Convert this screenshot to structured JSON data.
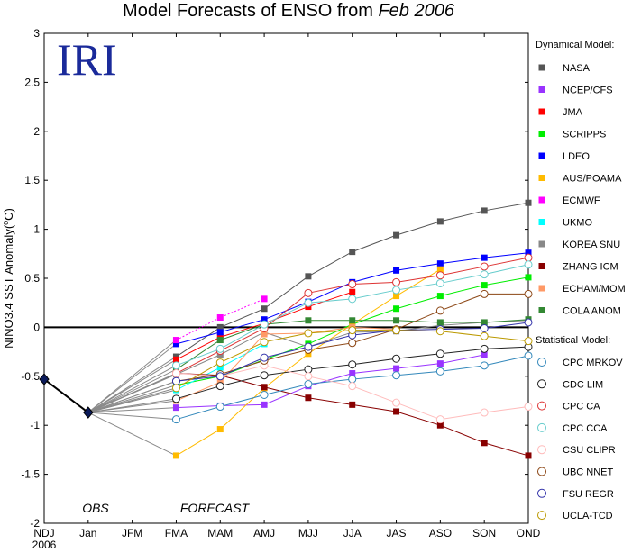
{
  "chart_data": {
    "type": "line",
    "title_prefix": "Model Forecasts of ENSO from ",
    "title_date": "Feb 2006",
    "logo_text": "IRI",
    "ylabel_main": "NINO3.4 SST Anomaly(",
    "ylabel_super": "o",
    "ylabel_unit": "C)",
    "ylim": [
      -2,
      3
    ],
    "y_ticks": [
      -2,
      -1.5,
      -1,
      -0.5,
      0,
      0.5,
      1,
      1.5,
      2,
      2.5,
      3
    ],
    "x_ticks": [
      "NDJ",
      "Jan",
      "JFM",
      "FMA",
      "MAM",
      "AMJ",
      "MJJ",
      "JJA",
      "JAS",
      "ASO",
      "SON",
      "OND"
    ],
    "x_sub_label": "2006",
    "obs_label": "OBS",
    "forecast_label": "FORECAST",
    "dynamical_heading": "Dynamical Model:",
    "statistical_heading": "Statistical Model:",
    "observed": [
      -0.53,
      -0.87
    ],
    "series": [
      {
        "name": "NASA",
        "group": "dynamical",
        "color": "#555555",
        "marker": "square",
        "values": [
          -0.3,
          0.0,
          0.19,
          0.52,
          0.77,
          0.94,
          1.08,
          1.19,
          1.27
        ]
      },
      {
        "name": "NCEP/CFS",
        "group": "dynamical",
        "color": "#9933ff",
        "marker": "square",
        "values": [
          -0.82,
          -0.8,
          -0.79,
          -0.6,
          -0.47,
          -0.42,
          -0.37,
          -0.28
        ]
      },
      {
        "name": "JMA",
        "group": "dynamical",
        "color": "#ff0000",
        "marker": "square",
        "values": [
          -0.33,
          -0.1,
          0.04,
          0.21,
          0.36
        ]
      },
      {
        "name": "SCRIPPS",
        "group": "dynamical",
        "color": "#00ee00",
        "marker": "square",
        "values": [
          -0.59,
          -0.5,
          -0.33,
          -0.17,
          0.03,
          0.19,
          0.32,
          0.43,
          0.51
        ]
      },
      {
        "name": "LDEO",
        "group": "dynamical",
        "color": "#0000ff",
        "marker": "square",
        "values": [
          -0.17,
          -0.05,
          0.08,
          0.26,
          0.46,
          0.58,
          0.65,
          0.71,
          0.76
        ]
      },
      {
        "name": "AUS/POAMA",
        "group": "dynamical",
        "color": "#ffbb00",
        "marker": "square",
        "values": [
          -1.31,
          -1.04,
          -0.62,
          -0.27,
          0.03,
          0.32,
          0.59
        ]
      },
      {
        "name": "ECMWF",
        "group": "dynamical",
        "color": "#ff00ff",
        "marker": "square",
        "values": [
          -0.13,
          0.1,
          0.29
        ]
      },
      {
        "name": "UKMO",
        "group": "dynamical",
        "color": "#00ffff",
        "marker": "square",
        "values": [
          -0.64,
          -0.41,
          -0.17
        ]
      },
      {
        "name": "KOREA SNU",
        "group": "dynamical",
        "color": "#888888",
        "marker": "square",
        "values": [
          -0.48,
          -0.28,
          -0.05,
          -0.2,
          -0.05,
          -0.04,
          0.02,
          0.05,
          0.07
        ]
      },
      {
        "name": "ZHANG ICM",
        "group": "dynamical",
        "color": "#880000",
        "marker": "square",
        "values": [
          -0.47,
          -0.49,
          -0.61,
          -0.72,
          -0.79,
          -0.86,
          -1.0,
          -1.18,
          -1.31
        ]
      },
      {
        "name": "ECHAM/MOM",
        "group": "dynamical",
        "color": "#ff9966",
        "marker": "square",
        "values": [
          -0.75,
          -0.56,
          -0.07,
          -0.06,
          0.0,
          -0.02
        ]
      },
      {
        "name": "COLA ANOM",
        "group": "dynamical",
        "color": "#338833",
        "marker": "square",
        "values": [
          -0.43,
          -0.13,
          0.03,
          0.07,
          0.07,
          0.07,
          0.05,
          0.05,
          0.08
        ]
      },
      {
        "name": "CPC MRKOV",
        "group": "statistical",
        "color": "#3388bb",
        "marker": "circle",
        "values": [
          -0.94,
          -0.81,
          -0.69,
          -0.58,
          -0.53,
          -0.49,
          -0.45,
          -0.39,
          -0.29
        ]
      },
      {
        "name": "CDC LIM",
        "group": "statistical",
        "color": "#222222",
        "marker": "circle",
        "values": [
          -0.73,
          -0.6,
          -0.49,
          -0.43,
          -0.38,
          -0.32,
          -0.27,
          -0.22,
          -0.2
        ]
      },
      {
        "name": "CPC CA",
        "group": "statistical",
        "color": "#dd3333",
        "marker": "circle",
        "values": [
          -0.47,
          -0.24,
          -0.01,
          0.35,
          0.44,
          0.46,
          0.53,
          0.62,
          0.71
        ]
      },
      {
        "name": "CPC CCA",
        "group": "statistical",
        "color": "#66cccc",
        "marker": "circle",
        "values": [
          -0.39,
          -0.22,
          0.03,
          0.25,
          0.29,
          0.38,
          0.45,
          0.54,
          0.64
        ]
      },
      {
        "name": "CSU CLIPR",
        "group": "statistical",
        "color": "#ffbbbb",
        "marker": "circle",
        "values": [
          -0.47,
          -0.5,
          -0.39,
          -0.5,
          -0.6,
          -0.77,
          -0.94,
          -0.87,
          -0.81
        ]
      },
      {
        "name": "UBC NNET",
        "group": "statistical",
        "color": "#8b4513",
        "marker": "circle",
        "values": [
          -0.55,
          -0.48,
          -0.34,
          -0.23,
          -0.16,
          -0.02,
          0.17,
          0.34,
          0.34
        ]
      },
      {
        "name": "FSU REGR",
        "group": "statistical",
        "color": "#3333aa",
        "marker": "circle",
        "values": [
          -0.55,
          -0.5,
          -0.31,
          -0.2,
          -0.08,
          -0.03,
          -0.02,
          -0.01,
          0.05
        ]
      },
      {
        "name": "UCLA-TCD",
        "group": "statistical",
        "color": "#bb9900",
        "marker": "circle",
        "values": [
          -0.62,
          -0.36,
          -0.15,
          -0.06,
          -0.03,
          -0.03,
          -0.04,
          -0.09,
          -0.14
        ]
      }
    ]
  }
}
